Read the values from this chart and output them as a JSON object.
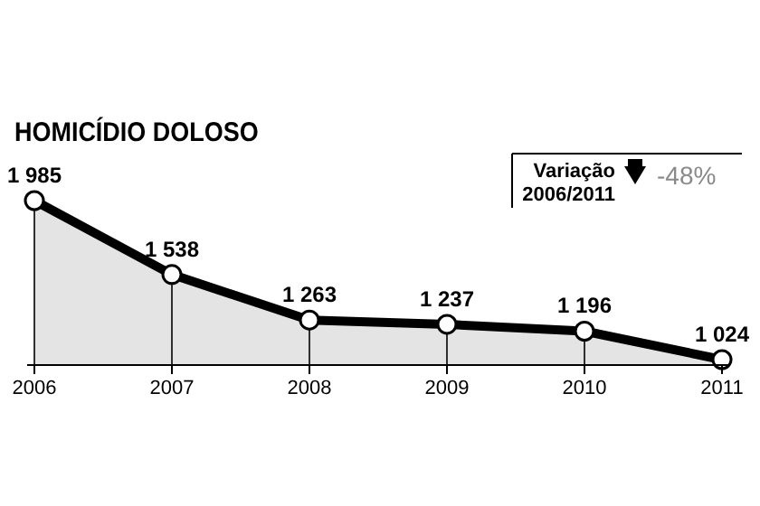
{
  "chart_data": {
    "type": "area",
    "title": "HOMICÍDIO DOLOSO",
    "categories": [
      "2006",
      "2007",
      "2008",
      "2009",
      "2010",
      "2011"
    ],
    "series": [
      {
        "color": "#000000",
        "values": [
          1985,
          1538,
          1263,
          1237,
          1196,
          1024
        ]
      }
    ],
    "tick_labels": "x",
    "data_labels": true,
    "marker": "circle",
    "annotations": [
      "Variação\n2006/2011",
      "-48%"
    ]
  }
}
